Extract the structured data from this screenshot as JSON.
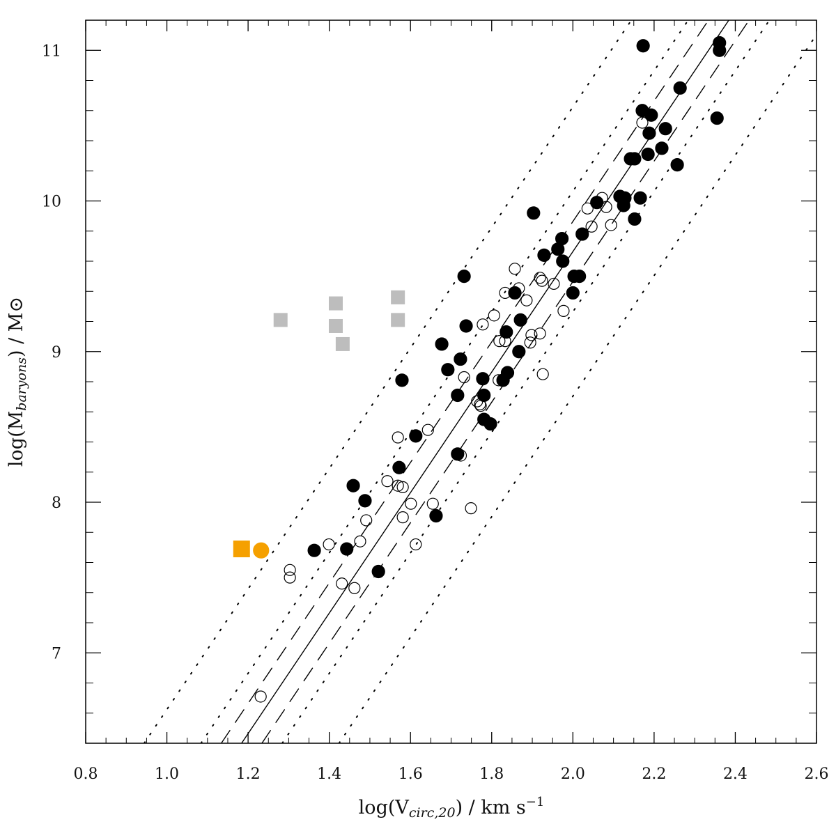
{
  "chart_data": {
    "type": "scatter",
    "xlabel": [
      "log(V",
      "circ,20",
      ") / km s",
      "−1"
    ],
    "ylabel": [
      "log(M",
      "baryons",
      ") / M⊙"
    ],
    "xlim": [
      0.8,
      2.6
    ],
    "ylim": [
      6.4,
      11.2
    ],
    "xticks": [
      {
        "value": 0.8,
        "label": "0.8"
      },
      {
        "value": 1.0,
        "label": "1.0"
      },
      {
        "value": 1.2,
        "label": "1.2"
      },
      {
        "value": 1.4,
        "label": "1.4"
      },
      {
        "value": 1.6,
        "label": "1.6"
      },
      {
        "value": 1.8,
        "label": "1.8"
      },
      {
        "value": 2.0,
        "label": "2.0"
      },
      {
        "value": 2.2,
        "label": "2.2"
      },
      {
        "value": 2.4,
        "label": "2.4"
      },
      {
        "value": 2.6,
        "label": "2.6"
      }
    ],
    "yticks": [
      7,
      8,
      9,
      10,
      11
    ],
    "series": [
      {
        "mode": "line",
        "dash": "solid",
        "color": "#000000",
        "x": [
          1.184,
          2.384
        ],
        "values": [
          6.4,
          11.2
        ]
      },
      {
        "mode": "line",
        "dash": "dashed",
        "color": "#000000",
        "x": [
          1.134,
          2.334
        ],
        "values": [
          6.4,
          11.2
        ]
      },
      {
        "mode": "line",
        "dash": "dashed",
        "color": "#000000",
        "x": [
          1.234,
          2.434
        ],
        "values": [
          6.4,
          11.2
        ]
      },
      {
        "mode": "line",
        "dash": "dotted",
        "color": "#000000",
        "x": [
          1.084,
          2.284
        ],
        "values": [
          6.4,
          11.2
        ]
      },
      {
        "mode": "line",
        "dash": "dotted",
        "color": "#000000",
        "x": [
          1.284,
          2.484
        ],
        "values": [
          6.4,
          11.2
        ]
      },
      {
        "mode": "line",
        "dash": "dotted",
        "color": "#000000",
        "x": [
          0.944,
          2.144
        ],
        "values": [
          6.4,
          11.2
        ]
      },
      {
        "mode": "line",
        "dash": "dotted",
        "color": "#000000",
        "x": [
          1.424,
          2.624
        ],
        "values": [
          6.4,
          11.2
        ]
      },
      {
        "mode": "markers",
        "marker": "circle",
        "filled": false,
        "color": "#000000",
        "x": [
          2.171,
          2.072,
          2.082,
          2.036,
          2.094,
          2.046,
          1.857,
          1.919,
          1.924,
          1.953,
          1.833,
          1.867,
          1.886,
          1.977,
          1.806,
          1.778,
          1.919,
          1.898,
          1.895,
          1.819,
          1.833,
          1.732,
          1.926,
          1.817,
          1.764,
          1.771,
          1.773,
          1.643,
          1.569,
          1.724,
          1.543,
          1.569,
          1.581,
          1.601,
          1.655,
          1.749,
          1.581,
          1.491,
          1.399,
          1.476,
          1.613,
          1.303,
          1.303,
          1.431,
          1.462,
          1.231
        ],
        "values": [
          10.52,
          10.02,
          9.96,
          9.95,
          9.84,
          9.83,
          9.55,
          9.49,
          9.47,
          9.45,
          9.39,
          9.42,
          9.34,
          9.27,
          9.24,
          9.18,
          9.12,
          9.11,
          9.06,
          9.07,
          9.07,
          8.83,
          8.85,
          8.81,
          8.67,
          8.65,
          8.64,
          8.48,
          8.43,
          8.31,
          8.14,
          8.11,
          8.1,
          7.99,
          7.99,
          7.96,
          7.9,
          7.88,
          7.72,
          7.74,
          7.72,
          7.55,
          7.5,
          7.46,
          7.43,
          6.71
        ]
      },
      {
        "mode": "markers",
        "marker": "circle",
        "filled": true,
        "color": "#000000",
        "x": [
          2.173,
          2.361,
          2.361,
          2.264,
          2.171,
          2.193,
          2.188,
          2.228,
          2.355,
          2.219,
          2.185,
          2.152,
          2.142,
          2.257,
          2.116,
          2.128,
          2.166,
          2.125,
          2.059,
          2.152,
          1.903,
          2.023,
          1.973,
          1.929,
          1.963,
          1.975,
          2.003,
          2.016,
          1.732,
          1.857,
          2.0,
          1.871,
          1.737,
          1.836,
          1.677,
          1.867,
          1.723,
          1.692,
          1.839,
          1.778,
          1.579,
          1.828,
          1.716,
          1.781,
          1.781,
          1.797,
          1.613,
          1.716,
          1.572,
          1.459,
          1.488,
          1.663,
          1.363,
          1.443,
          1.521
        ],
        "values": [
          11.03,
          11.05,
          11.0,
          10.75,
          10.6,
          10.57,
          10.45,
          10.48,
          10.55,
          10.35,
          10.31,
          10.28,
          10.28,
          10.24,
          10.03,
          10.02,
          10.02,
          9.97,
          9.99,
          9.88,
          9.92,
          9.78,
          9.75,
          9.64,
          9.68,
          9.6,
          9.5,
          9.5,
          9.5,
          9.39,
          9.39,
          9.21,
          9.17,
          9.13,
          9.05,
          9.0,
          8.95,
          8.88,
          8.86,
          8.82,
          8.81,
          8.81,
          8.71,
          8.71,
          8.55,
          8.52,
          8.44,
          8.32,
          8.23,
          8.11,
          8.01,
          7.91,
          7.68,
          7.69,
          7.54
        ]
      },
      {
        "mode": "markers",
        "marker": "square",
        "filled": true,
        "color": "#bdbdbd",
        "x": [
          1.28,
          1.416,
          1.416,
          1.433,
          1.569,
          1.569
        ],
        "values": [
          9.21,
          9.32,
          9.17,
          9.05,
          9.36,
          9.21
        ]
      },
      {
        "mode": "markers",
        "marker": "square",
        "filled": true,
        "size": "large",
        "color": "#f5a000",
        "x": [
          1.184
        ],
        "values": [
          7.69
        ]
      },
      {
        "mode": "markers",
        "marker": "circle",
        "filled": true,
        "size": "large",
        "color": "#f5a000",
        "x": [
          1.232
        ],
        "values": [
          7.68
        ]
      }
    ]
  }
}
